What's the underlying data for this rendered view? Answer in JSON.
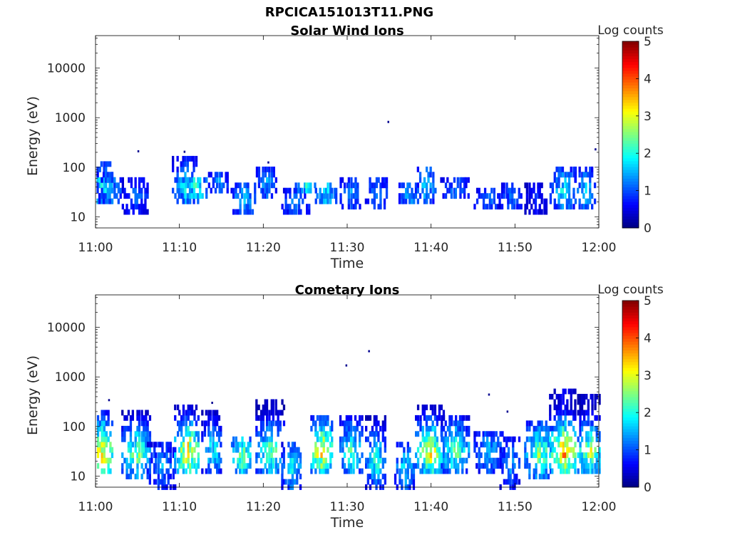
{
  "figure_title": "RPCICA151013T11.PNG",
  "chart_data": [
    {
      "type": "heatmap",
      "title": "Solar Wind Ions",
      "xlabel": "Time",
      "ylabel": "Energy (eV)",
      "xlim": [
        "11:00",
        "12:00"
      ],
      "xticks": [
        "11:00",
        "11:10",
        "11:20",
        "11:30",
        "11:40",
        "11:50",
        "12:00"
      ],
      "yscale": "log",
      "ylim": [
        6,
        45000
      ],
      "yticks": [
        10,
        100,
        1000,
        10000
      ],
      "ytick_labels": [
        "10",
        "100",
        "1000",
        "10000"
      ],
      "colorbar": {
        "label": "Log counts",
        "range": [
          0,
          5
        ],
        "ticks": [
          "0",
          "1",
          "2",
          "3",
          "4",
          "5"
        ],
        "colormap": "jet"
      },
      "bursts": [
        {
          "t": 0.5,
          "e_low": 18,
          "e_high": 125,
          "peak": 2.1
        },
        {
          "t": 1.5,
          "e_low": 18,
          "e_high": 70,
          "peak": 1.6
        },
        {
          "t": 4.5,
          "e_low": 12,
          "e_high": 60,
          "peak": 1.2
        },
        {
          "t": 10.5,
          "e_low": 18,
          "e_high": 150,
          "peak": 1.9
        },
        {
          "t": 11.5,
          "e_low": 22,
          "e_high": 60,
          "peak": 2.2
        },
        {
          "t": 14.8,
          "e_low": 35,
          "e_high": 75,
          "peak": 1.4
        },
        {
          "t": 17.5,
          "e_low": 12,
          "e_high": 45,
          "peak": 1.7
        },
        {
          "t": 20.5,
          "e_low": 28,
          "e_high": 100,
          "peak": 1.5
        },
        {
          "t": 23.5,
          "e_low": 12,
          "e_high": 35,
          "peak": 1.3
        },
        {
          "t": 25.2,
          "e_low": 35,
          "e_high": 45,
          "peak": 2.0
        },
        {
          "t": 27.5,
          "e_low": 18,
          "e_high": 45,
          "peak": 1.9
        },
        {
          "t": 30.5,
          "e_low": 14,
          "e_high": 60,
          "peak": 1.4
        },
        {
          "t": 33.5,
          "e_low": 14,
          "e_high": 55,
          "peak": 1.4
        },
        {
          "t": 37.5,
          "e_low": 18,
          "e_high": 45,
          "peak": 1.6
        },
        {
          "t": 39.5,
          "e_low": 22,
          "e_high": 90,
          "peak": 1.8
        },
        {
          "t": 42.5,
          "e_low": 25,
          "e_high": 55,
          "peak": 1.3
        },
        {
          "t": 46.5,
          "e_low": 14,
          "e_high": 35,
          "peak": 1.2
        },
        {
          "t": 49.5,
          "e_low": 14,
          "e_high": 40,
          "peak": 1.2
        },
        {
          "t": 52.5,
          "e_low": 12,
          "e_high": 45,
          "peak": 0.8
        },
        {
          "t": 55.5,
          "e_low": 14,
          "e_high": 90,
          "peak": 1.9
        },
        {
          "t": 58.5,
          "e_low": 14,
          "e_high": 95,
          "peak": 1.7
        }
      ],
      "isolated_points": [
        {
          "t": 5.0,
          "e": 210
        },
        {
          "t": 10.5,
          "e": 205
        },
        {
          "t": 20.5,
          "e": 125
        },
        {
          "t": 34.8,
          "e": 820
        },
        {
          "t": 59.5,
          "e": 230
        }
      ]
    },
    {
      "type": "heatmap",
      "title": "Cometary Ions",
      "xlabel": "Time",
      "ylabel": "Energy (eV)",
      "xlim": [
        "11:00",
        "12:00"
      ],
      "xticks": [
        "11:00",
        "11:10",
        "11:20",
        "11:30",
        "11:40",
        "11:50",
        "12:00"
      ],
      "yscale": "log",
      "ylim": [
        6,
        45000
      ],
      "yticks": [
        10,
        100,
        1000,
        10000
      ],
      "ytick_labels": [
        "10",
        "100",
        "1000",
        "10000"
      ],
      "colorbar": {
        "label": "Log counts",
        "range": [
          0,
          5
        ],
        "ticks": [
          "0",
          "1",
          "2",
          "3",
          "4",
          "5"
        ],
        "colormap": "jet"
      },
      "bursts": [
        {
          "t": 0.8,
          "e_low": 12,
          "e_high": 180,
          "peak": 3.5
        },
        {
          "t": 4.5,
          "e_low": 10,
          "e_high": 190,
          "peak": 2.6
        },
        {
          "t": 7.5,
          "e_low": 6,
          "e_high": 40,
          "peak": 1.5
        },
        {
          "t": 10.8,
          "e_low": 12,
          "e_high": 260,
          "peak": 3.5
        },
        {
          "t": 14.0,
          "e_low": 12,
          "e_high": 220,
          "peak": 2.0
        },
        {
          "t": 17.5,
          "e_low": 12,
          "e_high": 60,
          "peak": 2.6
        },
        {
          "t": 20.5,
          "e_low": 12,
          "e_high": 300,
          "peak": 2.6
        },
        {
          "t": 23.5,
          "e_low": 6,
          "e_high": 40,
          "peak": 2.0
        },
        {
          "t": 27.0,
          "e_low": 12,
          "e_high": 150,
          "peak": 3.6
        },
        {
          "t": 30.5,
          "e_low": 12,
          "e_high": 150,
          "peak": 2.4
        },
        {
          "t": 33.5,
          "e_low": 6,
          "e_high": 170,
          "peak": 2.3
        },
        {
          "t": 37.0,
          "e_low": 6,
          "e_high": 45,
          "peak": 1.9
        },
        {
          "t": 39.5,
          "e_low": 12,
          "e_high": 250,
          "peak": 3.2
        },
        {
          "t": 42.5,
          "e_low": 12,
          "e_high": 160,
          "peak": 2.5
        },
        {
          "t": 46.5,
          "e_low": 12,
          "e_high": 80,
          "peak": 1.7
        },
        {
          "t": 49.5,
          "e_low": 6,
          "e_high": 60,
          "peak": 1.5
        },
        {
          "t": 52.5,
          "e_low": 10,
          "e_high": 120,
          "peak": 2.7
        },
        {
          "t": 55.5,
          "e_low": 12,
          "e_high": 580,
          "peak": 3.8
        },
        {
          "t": 58.8,
          "e_low": 12,
          "e_high": 400,
          "peak": 3.0
        }
      ],
      "isolated_points": [
        {
          "t": 29.8,
          "e": 1700
        },
        {
          "t": 32.5,
          "e": 3300
        },
        {
          "t": 1.5,
          "e": 340
        },
        {
          "t": 13.8,
          "e": 300
        },
        {
          "t": 46.8,
          "e": 440
        },
        {
          "t": 49.0,
          "e": 200
        }
      ]
    }
  ]
}
